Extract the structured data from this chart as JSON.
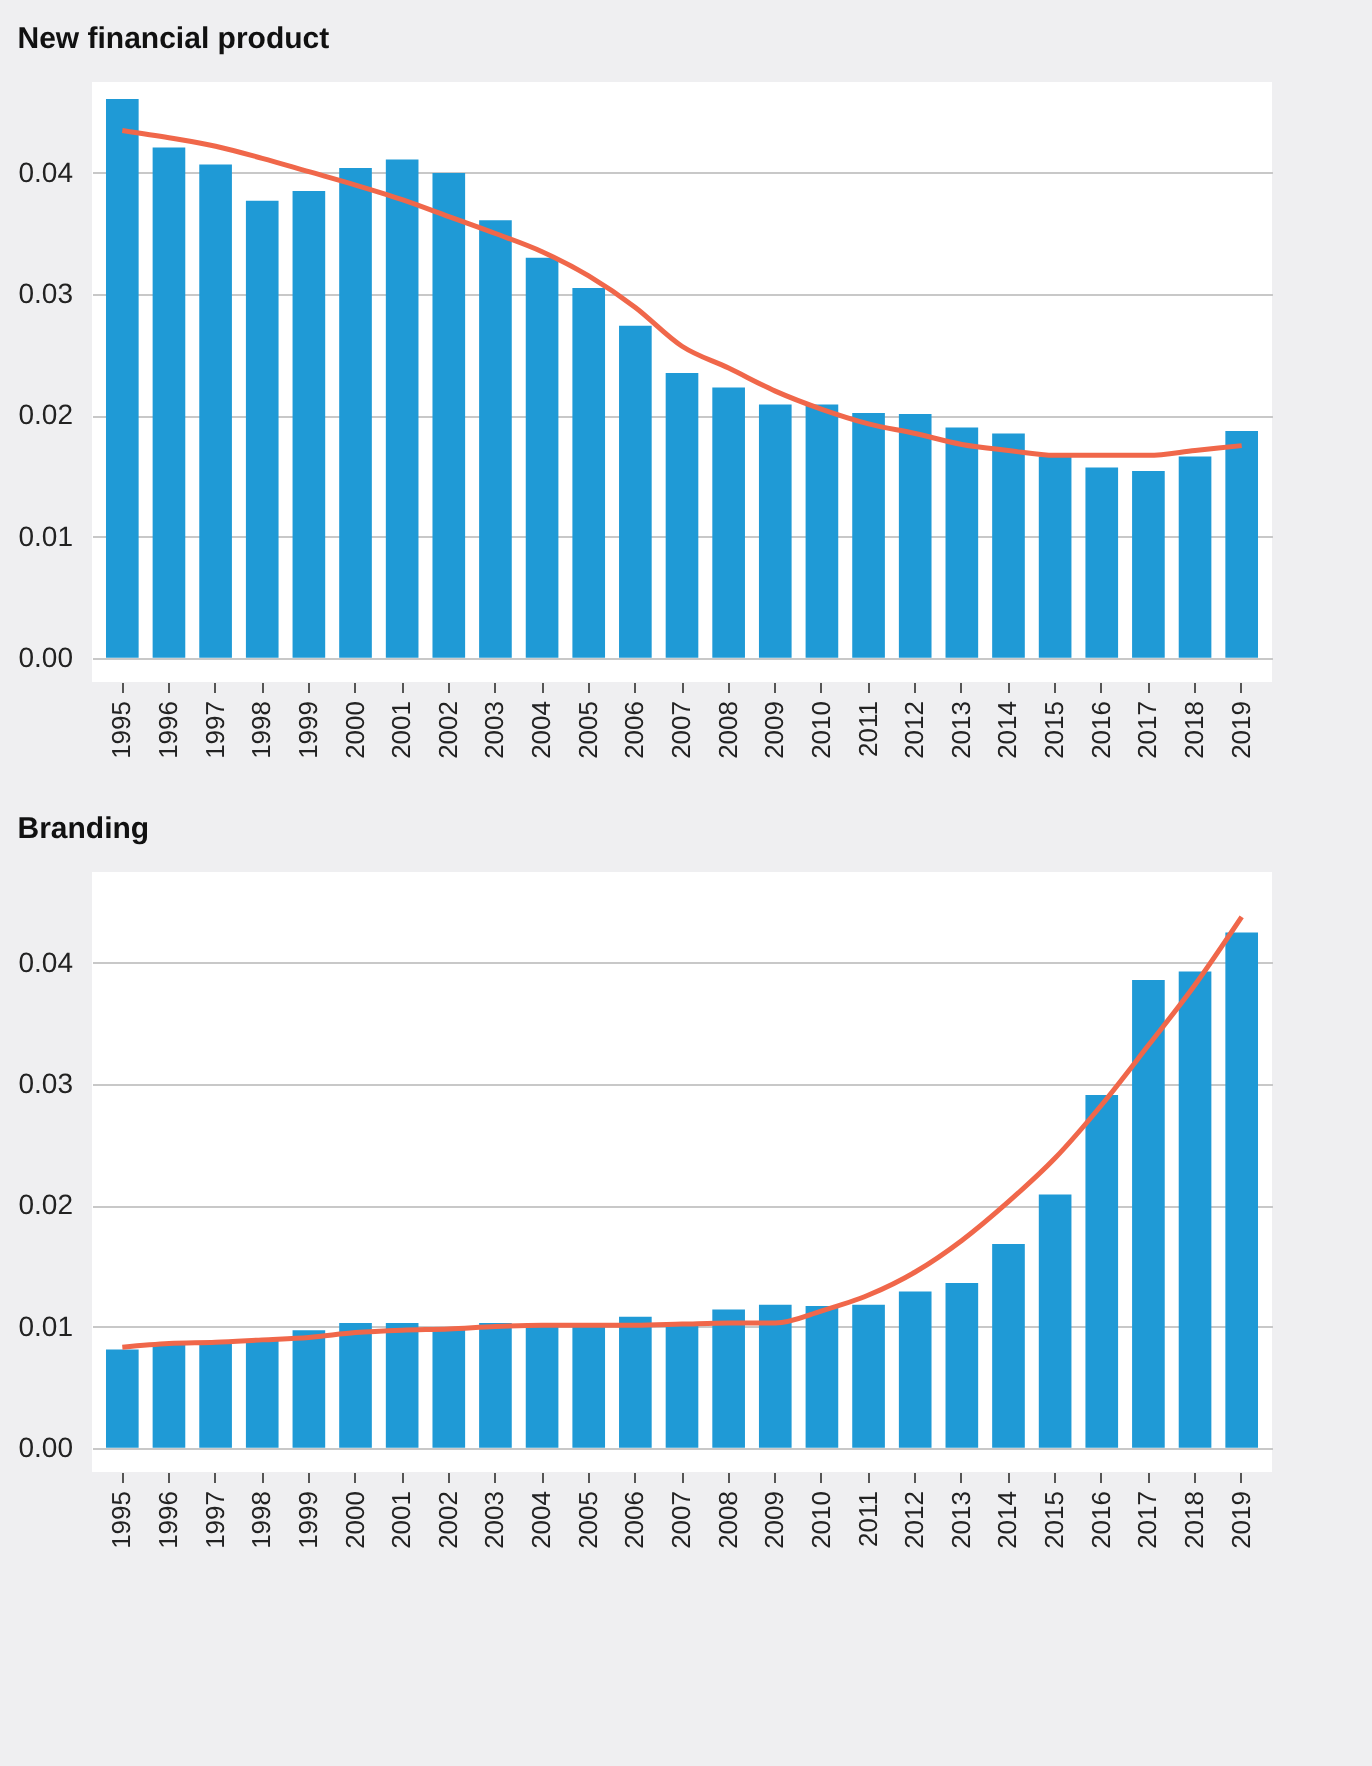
{
  "chart_data": [
    {
      "type": "bar",
      "title": "New financial product",
      "categories": [
        "1995",
        "1996",
        "1997",
        "1998",
        "1999",
        "2000",
        "2001",
        "2002",
        "2003",
        "2004",
        "2005",
        "2006",
        "2007",
        "2008",
        "2009",
        "2010",
        "2011",
        "2012",
        "2013",
        "2014",
        "2015",
        "2016",
        "2017",
        "2018",
        "2019"
      ],
      "ylim": [
        -0.002,
        0.0475
      ],
      "yticks": [
        {
          "value": 0,
          "label": "0.00"
        },
        {
          "value": 0.01,
          "label": "0.01"
        },
        {
          "value": 0.02,
          "label": "0.02"
        },
        {
          "value": 0.03,
          "label": "0.03"
        },
        {
          "value": 0.04,
          "label": "0.04"
        }
      ],
      "grid": "y",
      "series": [
        {
          "color": "#1f9ad6",
          "values": [
            0.0461,
            0.0421,
            0.0407,
            0.0377,
            0.0385,
            0.0404,
            0.0411,
            0.04,
            0.0361,
            0.033,
            0.0305,
            0.0274,
            0.0235,
            0.0223,
            0.0209,
            0.0209,
            0.0202,
            0.0201,
            0.019,
            0.0185,
            0.0166,
            0.0157,
            0.0154,
            0.0166,
            0.0187
          ]
        },
        {
          "type": "line",
          "color": "#f0674a",
          "values": [
            0.0435,
            0.0429,
            0.0422,
            0.0412,
            0.0401,
            0.039,
            0.0378,
            0.0364,
            0.035,
            0.0335,
            0.0315,
            0.0289,
            0.0257,
            0.0239,
            0.022,
            0.0205,
            0.0193,
            0.0185,
            0.0176,
            0.0171,
            0.0167,
            0.0167,
            0.0167,
            0.0171,
            0.0175
          ]
        }
      ]
    },
    {
      "type": "bar",
      "title": "Branding",
      "categories": [
        "1995",
        "1996",
        "1997",
        "1998",
        "1999",
        "2000",
        "2001",
        "2002",
        "2003",
        "2004",
        "2005",
        "2006",
        "2007",
        "2008",
        "2009",
        "2010",
        "2011",
        "2012",
        "2013",
        "2014",
        "2015",
        "2016",
        "2017",
        "2018",
        "2019"
      ],
      "ylim": [
        -0.002,
        0.0475
      ],
      "yticks": [
        {
          "value": 0,
          "label": "0.00"
        },
        {
          "value": 0.01,
          "label": "0.01"
        },
        {
          "value": 0.02,
          "label": "0.02"
        },
        {
          "value": 0.03,
          "label": "0.03"
        },
        {
          "value": 0.04,
          "label": "0.04"
        }
      ],
      "grid": "y",
      "series": [
        {
          "color": "#1f9ad6",
          "values": [
            0.0081,
            0.0086,
            0.0087,
            0.0088,
            0.0097,
            0.0103,
            0.0103,
            0.0099,
            0.0103,
            0.0101,
            0.01,
            0.0108,
            0.0103,
            0.0114,
            0.0118,
            0.0117,
            0.0118,
            0.0129,
            0.0136,
            0.0168,
            0.0209,
            0.0291,
            0.0386,
            0.0393,
            0.0425
          ]
        },
        {
          "type": "line",
          "color": "#f0674a",
          "values": [
            0.0083,
            0.0086,
            0.0087,
            0.0089,
            0.0091,
            0.0095,
            0.0097,
            0.0098,
            0.01,
            0.0101,
            0.0101,
            0.0101,
            0.0102,
            0.0103,
            0.0103,
            0.0113,
            0.0126,
            0.0145,
            0.0171,
            0.0203,
            0.0239,
            0.0283,
            0.0332,
            0.0382,
            0.0438
          ]
        }
      ]
    }
  ]
}
